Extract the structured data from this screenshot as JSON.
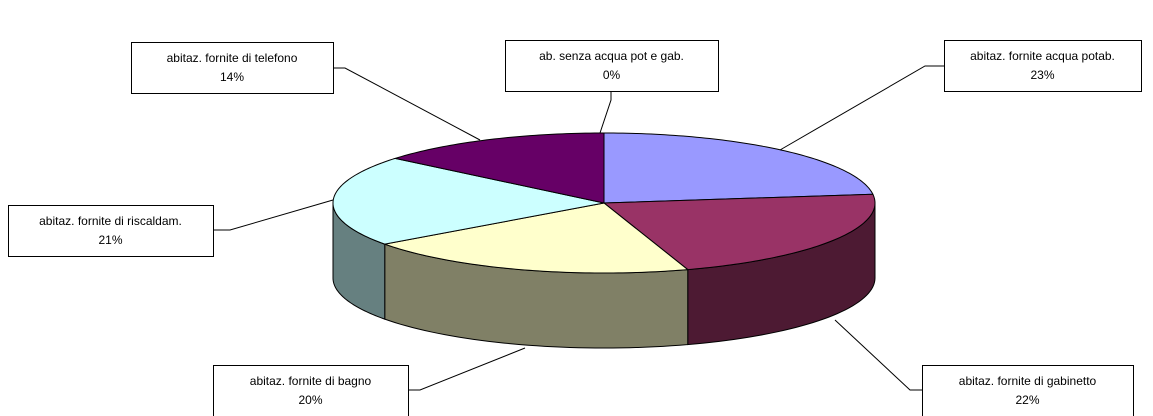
{
  "chart_data": {
    "type": "pie",
    "categories": [
      "abitaz. fornite acqua potab.",
      "abitaz. fornite di gabinetto",
      "abitaz. fornite di bagno",
      "abitaz. fornite di riscaldam.",
      "abitaz. fornite di telefono",
      "ab. senza acqua pot e gab."
    ],
    "values": [
      23,
      22,
      20,
      21,
      14,
      0
    ],
    "value_labels": [
      "23%",
      "22%",
      "20%",
      "21%",
      "14%",
      "0%"
    ],
    "colors": [
      "#9999ff",
      "#993366",
      "#ffffcc",
      "#ccffff",
      "#660066",
      "#ff8080"
    ]
  }
}
